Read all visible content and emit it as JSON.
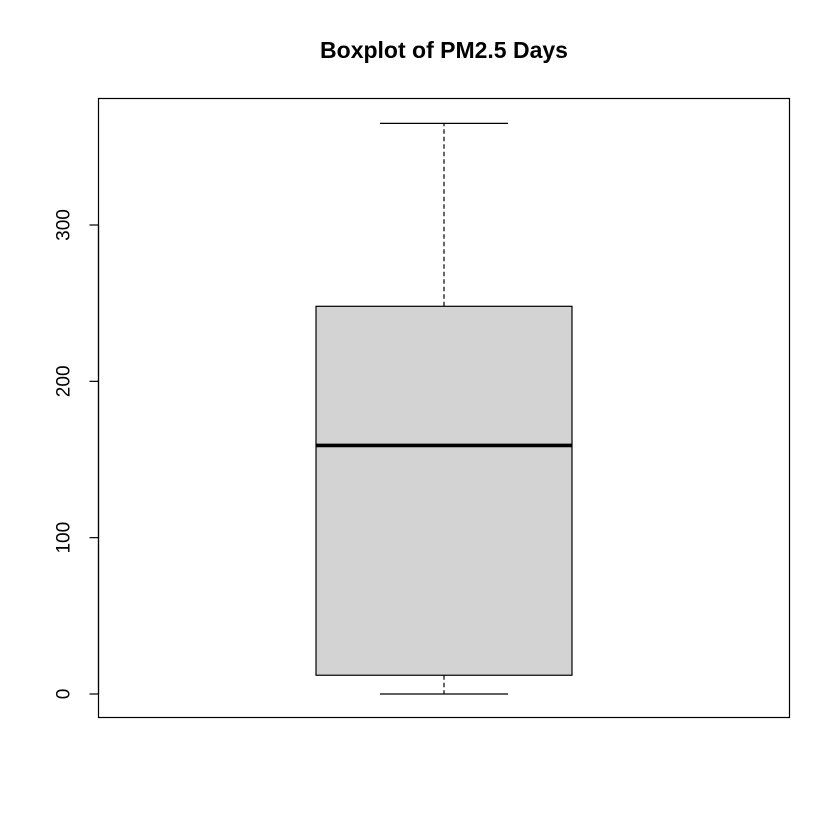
{
  "chart_data": {
    "type": "boxplot",
    "title": "Boxplot of PM2.5 Days",
    "xlabel": "",
    "ylabel": "",
    "ylim": [
      -15,
      380
    ],
    "y_ticks": [
      0,
      100,
      200,
      300
    ],
    "y_tick_labels": [
      "0",
      "100",
      "200",
      "300"
    ],
    "box": {
      "min": 0,
      "q1": 12,
      "median": 159,
      "q3": 248,
      "max": 365
    },
    "box_fill": "#d3d3d3",
    "line_color": "#000000",
    "grid": false,
    "legend": "none"
  }
}
